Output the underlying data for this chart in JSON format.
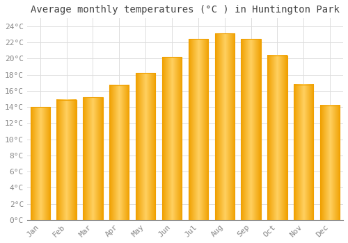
{
  "title": "Average monthly temperatures (°C ) in Huntington Park",
  "months": [
    "Jan",
    "Feb",
    "Mar",
    "Apr",
    "May",
    "Jun",
    "Jul",
    "Aug",
    "Sep",
    "Oct",
    "Nov",
    "Dec"
  ],
  "values": [
    14.0,
    14.9,
    15.2,
    16.7,
    18.2,
    20.2,
    22.4,
    23.1,
    22.4,
    20.4,
    16.8,
    14.2
  ],
  "bar_color_center": "#FFD060",
  "bar_color_edge": "#F0A000",
  "background_color": "#FFFFFF",
  "grid_color": "#DDDDDD",
  "ylim": [
    0,
    25
  ],
  "yticks": [
    0,
    2,
    4,
    6,
    8,
    10,
    12,
    14,
    16,
    18,
    20,
    22,
    24
  ],
  "ytick_labels": [
    "0°C",
    "2°C",
    "4°C",
    "6°C",
    "8°C",
    "10°C",
    "12°C",
    "14°C",
    "16°C",
    "18°C",
    "20°C",
    "22°C",
    "24°C"
  ],
  "title_fontsize": 10,
  "tick_fontsize": 8,
  "tick_font_color": "#888888",
  "title_font_color": "#444444",
  "bar_width": 0.75
}
